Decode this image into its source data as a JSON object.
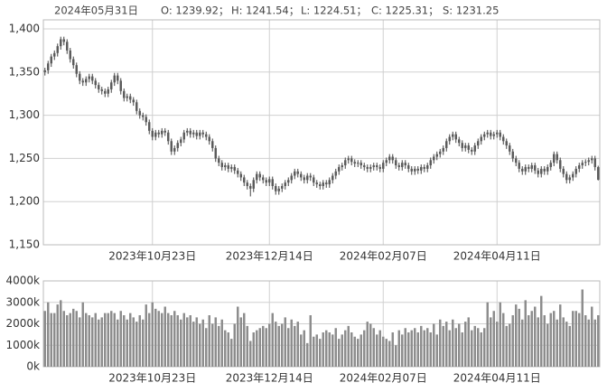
{
  "chart_data": [
    {
      "type": "candlestick",
      "header": {
        "date": "2024年05月31日",
        "items": [
          "O: 1239.92；",
          "H: 1241.54；",
          "L: 1224.51；",
          "C: 1225.31；",
          "S: 1231.25"
        ]
      },
      "color": "#5a5a5a",
      "grid": true,
      "ylim": [
        1150,
        1400
      ],
      "yticks": [
        {
          "value": 1150,
          "label": "1,150"
        },
        {
          "value": 1200,
          "label": "1,200"
        },
        {
          "value": 1250,
          "label": "1,250"
        },
        {
          "value": 1300,
          "label": "1,300"
        },
        {
          "value": 1350,
          "label": "1,350"
        },
        {
          "value": 1400,
          "label": "1,400"
        }
      ],
      "categories": [
        null,
        null,
        null,
        null,
        null,
        null,
        null,
        null,
        null,
        null,
        null,
        null,
        null,
        null,
        null,
        null,
        null,
        null,
        null,
        null,
        null,
        null,
        null,
        null,
        null,
        null,
        null,
        null,
        null,
        null,
        null,
        null,
        null,
        null,
        "2023年10月23日",
        null,
        null,
        null,
        null,
        null,
        null,
        null,
        null,
        null,
        null,
        null,
        null,
        null,
        null,
        null,
        null,
        null,
        null,
        null,
        null,
        null,
        null,
        null,
        null,
        null,
        null,
        null,
        null,
        null,
        null,
        null,
        null,
        null,
        null,
        null,
        null,
        "2023年12月14日",
        null,
        null,
        null,
        null,
        null,
        null,
        null,
        null,
        null,
        null,
        null,
        null,
        null,
        null,
        null,
        null,
        null,
        null,
        null,
        null,
        null,
        null,
        null,
        null,
        null,
        null,
        null,
        null,
        null,
        null,
        null,
        null,
        null,
        null,
        null,
        "2024年02月07日",
        null,
        null,
        null,
        null,
        null,
        null,
        null,
        null,
        null,
        null,
        null,
        null,
        null,
        null,
        null,
        null,
        null,
        null,
        null,
        null,
        null,
        null,
        null,
        null,
        null,
        null,
        null,
        null,
        null,
        null,
        null,
        null,
        null,
        null,
        null,
        "2024年04月11日",
        null,
        null,
        null,
        null,
        null,
        null,
        null,
        null,
        null,
        null,
        null,
        null,
        null,
        null,
        null,
        null,
        null,
        null,
        null,
        null,
        null,
        null,
        null,
        null,
        null,
        null,
        null,
        null,
        null,
        null,
        null,
        null
      ],
      "open": [
        1350,
        1352,
        1360,
        1368,
        1372,
        1380,
        1388,
        1385,
        1375,
        1365,
        1358,
        1348,
        1340,
        1338,
        1342,
        1345,
        1340,
        1335,
        1330,
        1328,
        1325,
        1330,
        1338,
        1346,
        1340,
        1328,
        1320,
        1322,
        1318,
        1315,
        1305,
        1300,
        1298,
        1292,
        1282,
        1275,
        1280,
        1278,
        1282,
        1280,
        1270,
        1258,
        1262,
        1268,
        1272,
        1280,
        1282,
        1278,
        1280,
        1276,
        1280,
        1278,
        1275,
        1270,
        1262,
        1250,
        1245,
        1240,
        1242,
        1238,
        1240,
        1236,
        1232,
        1228,
        1222,
        1218,
        1215,
        1225,
        1232,
        1228,
        1225,
        1222,
        1226,
        1218,
        1212,
        1215,
        1218,
        1222,
        1225,
        1230,
        1235,
        1232,
        1228,
        1225,
        1230,
        1228,
        1222,
        1220,
        1218,
        1222,
        1220,
        1225,
        1230,
        1235,
        1240,
        1242,
        1248,
        1250,
        1246,
        1244,
        1245,
        1242,
        1240,
        1238,
        1240,
        1242,
        1240,
        1238,
        1245,
        1248,
        1252,
        1248,
        1242,
        1240,
        1245,
        1242,
        1238,
        1235,
        1238,
        1236,
        1240,
        1238,
        1242,
        1248,
        1252,
        1255,
        1258,
        1262,
        1270,
        1275,
        1278,
        1272,
        1268,
        1262,
        1265,
        1260,
        1258,
        1265,
        1270,
        1275,
        1278,
        1280,
        1276,
        1278,
        1280,
        1275,
        1270,
        1265,
        1258,
        1250,
        1245,
        1238,
        1235,
        1240,
        1238,
        1242,
        1236,
        1232,
        1238,
        1235,
        1240,
        1245,
        1255,
        1248,
        1238,
        1232,
        1225,
        1228,
        1232,
        1238,
        1242,
        1245,
        1246,
        1248,
        1250,
        1239.92
      ],
      "high": [
        1355,
        1363,
        1371,
        1375,
        1383,
        1391,
        1391,
        1388,
        1378,
        1368,
        1361,
        1351,
        1343,
        1345,
        1348,
        1348,
        1343,
        1338,
        1333,
        1331,
        1333,
        1341,
        1349,
        1349,
        1343,
        1331,
        1325,
        1325,
        1321,
        1318,
        1308,
        1303,
        1301,
        1295,
        1285,
        1283,
        1283,
        1285,
        1285,
        1283,
        1273,
        1265,
        1271,
        1275,
        1283,
        1285,
        1285,
        1283,
        1283,
        1283,
        1283,
        1281,
        1278,
        1273,
        1265,
        1253,
        1248,
        1245,
        1245,
        1243,
        1243,
        1239,
        1235,
        1231,
        1225,
        1221,
        1228,
        1235,
        1235,
        1231,
        1228,
        1229,
        1229,
        1221,
        1218,
        1221,
        1225,
        1228,
        1233,
        1238,
        1238,
        1235,
        1231,
        1233,
        1233,
        1231,
        1225,
        1223,
        1225,
        1225,
        1228,
        1233,
        1238,
        1243,
        1245,
        1251,
        1253,
        1253,
        1249,
        1248,
        1248,
        1245,
        1243,
        1243,
        1245,
        1245,
        1243,
        1248,
        1251,
        1255,
        1255,
        1251,
        1245,
        1248,
        1248,
        1245,
        1241,
        1241,
        1241,
        1243,
        1243,
        1245,
        1251,
        1255,
        1258,
        1261,
        1265,
        1273,
        1278,
        1281,
        1281,
        1275,
        1271,
        1268,
        1268,
        1263,
        1268,
        1273,
        1278,
        1281,
        1283,
        1283,
        1281,
        1283,
        1283,
        1278,
        1273,
        1268,
        1261,
        1253,
        1248,
        1241,
        1243,
        1243,
        1245,
        1245,
        1239,
        1241,
        1241,
        1243,
        1248,
        1258,
        1258,
        1251,
        1241,
        1235,
        1231,
        1235,
        1241,
        1245,
        1248,
        1249,
        1251,
        1253,
        1253,
        1241.54
      ],
      "low": [
        1346,
        1348,
        1356,
        1364,
        1368,
        1376,
        1381,
        1371,
        1361,
        1354,
        1344,
        1336,
        1334,
        1334,
        1338,
        1336,
        1331,
        1326,
        1324,
        1321,
        1321,
        1326,
        1334,
        1336,
        1324,
        1316,
        1316,
        1314,
        1311,
        1301,
        1296,
        1294,
        1288,
        1278,
        1271,
        1271,
        1274,
        1274,
        1276,
        1266,
        1254,
        1254,
        1258,
        1264,
        1268,
        1276,
        1274,
        1274,
        1272,
        1272,
        1274,
        1271,
        1266,
        1258,
        1246,
        1241,
        1236,
        1236,
        1234,
        1234,
        1232,
        1228,
        1224,
        1218,
        1214,
        1206,
        1211,
        1221,
        1224,
        1221,
        1218,
        1218,
        1214,
        1208,
        1208,
        1211,
        1214,
        1218,
        1221,
        1226,
        1228,
        1224,
        1221,
        1221,
        1224,
        1218,
        1216,
        1214,
        1214,
        1216,
        1216,
        1221,
        1226,
        1231,
        1236,
        1238,
        1244,
        1242,
        1240,
        1240,
        1238,
        1236,
        1234,
        1234,
        1236,
        1236,
        1234,
        1234,
        1241,
        1244,
        1244,
        1238,
        1236,
        1236,
        1238,
        1234,
        1231,
        1231,
        1232,
        1232,
        1234,
        1234,
        1238,
        1244,
        1248,
        1251,
        1254,
        1258,
        1266,
        1271,
        1268,
        1264,
        1258,
        1258,
        1256,
        1254,
        1254,
        1261,
        1266,
        1271,
        1274,
        1272,
        1272,
        1274,
        1271,
        1266,
        1261,
        1254,
        1246,
        1241,
        1234,
        1231,
        1231,
        1234,
        1234,
        1232,
        1228,
        1228,
        1231,
        1231,
        1236,
        1241,
        1244,
        1234,
        1228,
        1221,
        1221,
        1224,
        1228,
        1234,
        1238,
        1241,
        1242,
        1244,
        1236,
        1224.51
      ],
      "close": [
        1352,
        1360,
        1368,
        1372,
        1380,
        1388,
        1385,
        1375,
        1365,
        1358,
        1348,
        1340,
        1338,
        1342,
        1345,
        1340,
        1335,
        1330,
        1328,
        1325,
        1330,
        1338,
        1346,
        1340,
        1328,
        1320,
        1322,
        1318,
        1315,
        1305,
        1300,
        1298,
        1292,
        1282,
        1275,
        1280,
        1278,
        1282,
        1280,
        1270,
        1258,
        1262,
        1268,
        1272,
        1280,
        1282,
        1278,
        1280,
        1276,
        1280,
        1278,
        1275,
        1270,
        1262,
        1250,
        1245,
        1240,
        1242,
        1238,
        1240,
        1236,
        1232,
        1228,
        1222,
        1218,
        1215,
        1225,
        1232,
        1228,
        1225,
        1222,
        1226,
        1218,
        1212,
        1215,
        1218,
        1222,
        1225,
        1230,
        1235,
        1232,
        1228,
        1225,
        1230,
        1228,
        1222,
        1220,
        1218,
        1222,
        1220,
        1225,
        1230,
        1235,
        1240,
        1242,
        1248,
        1250,
        1246,
        1244,
        1245,
        1242,
        1240,
        1238,
        1240,
        1242,
        1240,
        1238,
        1245,
        1248,
        1252,
        1248,
        1242,
        1240,
        1245,
        1242,
        1238,
        1235,
        1238,
        1236,
        1240,
        1238,
        1242,
        1248,
        1252,
        1255,
        1258,
        1262,
        1270,
        1275,
        1278,
        1272,
        1268,
        1262,
        1265,
        1260,
        1258,
        1265,
        1270,
        1275,
        1278,
        1280,
        1276,
        1278,
        1280,
        1275,
        1270,
        1265,
        1258,
        1250,
        1245,
        1238,
        1235,
        1240,
        1238,
        1242,
        1236,
        1232,
        1238,
        1235,
        1240,
        1245,
        1255,
        1248,
        1238,
        1232,
        1225,
        1228,
        1232,
        1238,
        1242,
        1245,
        1246,
        1248,
        1250,
        1240,
        1225.31
      ]
    },
    {
      "type": "bar",
      "color": "#8c8c8c",
      "grid": true,
      "ylim": [
        0,
        4000
      ],
      "yticks": [
        {
          "value": 0,
          "label": "0k"
        },
        {
          "value": 1000,
          "label": "1000k"
        },
        {
          "value": 2000,
          "label": "2000k"
        },
        {
          "value": 3000,
          "label": "3000k"
        },
        {
          "value": 4000,
          "label": "4000k"
        }
      ],
      "categories": [
        null,
        null,
        null,
        null,
        null,
        null,
        null,
        null,
        null,
        null,
        null,
        null,
        null,
        null,
        null,
        null,
        null,
        null,
        null,
        null,
        null,
        null,
        null,
        null,
        null,
        null,
        null,
        null,
        null,
        null,
        null,
        null,
        null,
        null,
        "2023年10月23日",
        null,
        null,
        null,
        null,
        null,
        null,
        null,
        null,
        null,
        null,
        null,
        null,
        null,
        null,
        null,
        null,
        null,
        null,
        null,
        null,
        null,
        null,
        null,
        null,
        null,
        null,
        null,
        null,
        null,
        null,
        null,
        null,
        null,
        null,
        null,
        null,
        "2023年12月14日",
        null,
        null,
        null,
        null,
        null,
        null,
        null,
        null,
        null,
        null,
        null,
        null,
        null,
        null,
        null,
        null,
        null,
        null,
        null,
        null,
        null,
        null,
        null,
        null,
        null,
        null,
        null,
        null,
        null,
        null,
        null,
        null,
        null,
        null,
        null,
        "2024年02月07日",
        null,
        null,
        null,
        null,
        null,
        null,
        null,
        null,
        null,
        null,
        null,
        null,
        null,
        null,
        null,
        null,
        null,
        null,
        null,
        null,
        null,
        null,
        null,
        null,
        null,
        null,
        null,
        null,
        null,
        null,
        null,
        null,
        null,
        null,
        null,
        "2024年04月11日",
        null,
        null,
        null,
        null,
        null,
        null,
        null,
        null,
        null,
        null,
        null,
        null,
        null,
        null,
        null,
        null,
        null,
        null,
        null,
        null,
        null,
        null,
        null,
        null,
        null,
        null,
        null,
        null,
        null,
        null,
        null,
        null
      ],
      "values": [
        2600,
        3000,
        2500,
        2500,
        2900,
        3100,
        2600,
        2400,
        2500,
        2700,
        2600,
        2300,
        3000,
        2500,
        2400,
        2300,
        2500,
        2200,
        2300,
        2500,
        2500,
        2600,
        2500,
        2200,
        2600,
        2400,
        2200,
        2500,
        2300,
        2100,
        2400,
        2200,
        2900,
        2500,
        3000,
        2700,
        2600,
        2500,
        2800,
        2500,
        2400,
        2600,
        2400,
        2200,
        2500,
        2300,
        2400,
        2100,
        2300,
        2000,
        2200,
        1800,
        2400,
        2000,
        2300,
        1900,
        2200,
        1700,
        1600,
        1300,
        2000,
        2800,
        2300,
        2500,
        1900,
        1200,
        1600,
        1700,
        1800,
        1900,
        1800,
        2000,
        2500,
        2100,
        1900,
        2000,
        2300,
        1800,
        2200,
        1900,
        2100,
        1500,
        1700,
        1100,
        2400,
        1400,
        1500,
        1300,
        1600,
        1700,
        1600,
        1500,
        1800,
        1300,
        1500,
        1700,
        1900,
        1600,
        1400,
        1300,
        1500,
        1700,
        2100,
        2000,
        1800,
        1500,
        1700,
        1400,
        1300,
        1200,
        1600,
        1000,
        1700,
        1500,
        1800,
        1600,
        1700,
        1800,
        1600,
        1900,
        1700,
        1800,
        1600,
        2000,
        1500,
        2200,
        1900,
        2100,
        1700,
        2200,
        1800,
        2000,
        1600,
        2100,
        2300,
        1700,
        1900,
        1800,
        1600,
        1800,
        3000,
        2300,
        2600,
        2100,
        3000,
        2500,
        1900,
        2000,
        2400,
        2900,
        2700,
        2200,
        3100,
        2400,
        2600,
        2800,
        2300,
        3300,
        2400,
        2000,
        2500,
        2600,
        2200,
        2900,
        2300,
        2100,
        1900,
        2600,
        2600,
        2500,
        3600,
        2400,
        2200,
        2800,
        2200,
        2400
      ]
    }
  ]
}
